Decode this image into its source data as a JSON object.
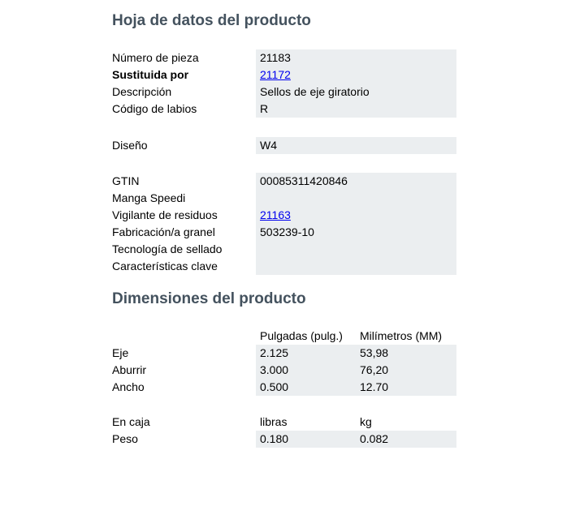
{
  "product_sheet": {
    "title": "Hoja de datos del producto",
    "info_rows": [
      {
        "label": "Número de pieza",
        "value": "21183"
      },
      {
        "label": "Sustituida por",
        "value": "21172"
      },
      {
        "label": "Descripción",
        "value": "Sellos de eje giratorio"
      },
      {
        "label": "Código de labios",
        "value": "R"
      }
    ],
    "design_row": {
      "label": "Diseño",
      "value": "W4"
    },
    "detail_rows": [
      {
        "label": "GTIN",
        "value": "00085311420846"
      },
      {
        "label": "Manga Speedi",
        "value": ""
      },
      {
        "label": "Vigilante de residuos",
        "value": "21163"
      },
      {
        "label": "Fabricación/a granel",
        "value": "503239-10"
      },
      {
        "label": "Tecnología de sellado",
        "value": ""
      },
      {
        "label": "Características clave",
        "value": ""
      }
    ]
  },
  "dimensions": {
    "title": "Dimensiones del producto",
    "table": {
      "col_headers": [
        "Pulgadas (pulg.)",
        "Milímetros (MM)"
      ],
      "rows": [
        {
          "label": "Eje",
          "inches": "2.125",
          "mm": "53,98"
        },
        {
          "label": "Aburrir",
          "inches": "3.000",
          "mm": "76,20"
        },
        {
          "label": "Ancho",
          "inches": "0.500",
          "mm": "12.70"
        }
      ]
    },
    "packaging": {
      "label": "En caja",
      "col_headers": [
        "libras",
        "kg"
      ],
      "rows": [
        {
          "label": "Peso",
          "lb": "0.180",
          "kg": "0.082"
        }
      ]
    }
  },
  "colors": {
    "heading": "#44525E",
    "row_background": "#EBEEF0",
    "link": "#0000EE",
    "text": "#000000"
  }
}
